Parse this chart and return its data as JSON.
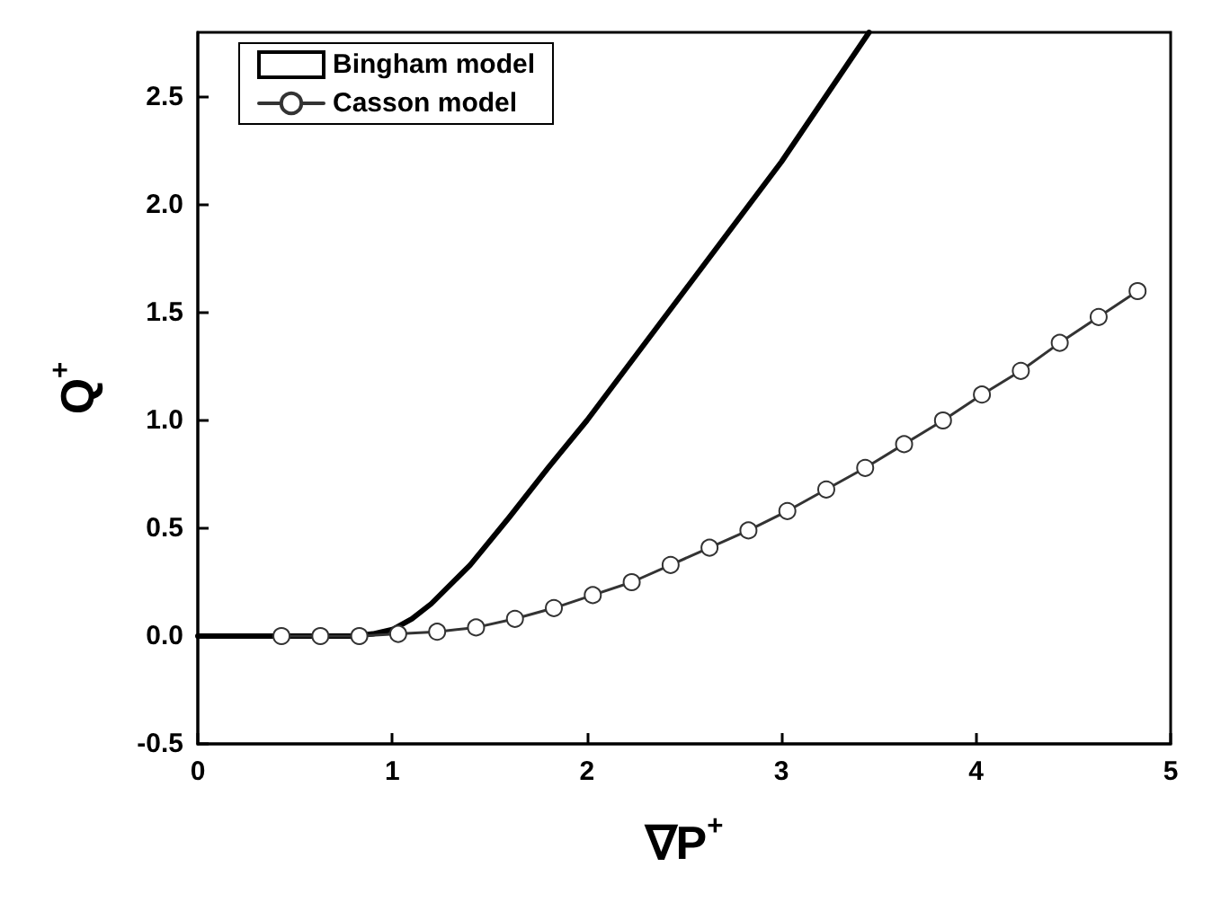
{
  "chart_data": {
    "type": "line",
    "xlabel": "∇P$^{+}$",
    "ylabel": "Q$^{+}$",
    "xlim": [
      0,
      5
    ],
    "ylim": [
      -0.5,
      2.8
    ],
    "xticks": [
      0,
      1,
      2,
      3,
      4,
      5
    ],
    "yticks": [
      {
        "value": -0.5,
        "label": "-0.5"
      },
      {
        "value": 0,
        "label": "0.0"
      },
      0.5,
      {
        "value": 1,
        "label": "1.0"
      },
      1.5,
      {
        "value": 2,
        "label": "2.0"
      },
      2.5
    ],
    "grid": false,
    "legend": "top left",
    "series": [
      {
        "name": "Bingham model",
        "color": "#000000",
        "marker": "none",
        "x": [
          0,
          0.8,
          0.9,
          1.0,
          1.1,
          1.2,
          1.4,
          1.6,
          1.8,
          2,
          2.5,
          3,
          3.45
        ],
        "values": [
          0,
          0,
          0.01,
          0.03,
          0.08,
          0.15,
          0.33,
          0.55,
          0.78,
          1.0,
          1.6,
          2.2,
          2.8
        ]
      },
      {
        "name": "Casson model",
        "color": "#333333",
        "marker": "circle",
        "x": [
          0.43,
          0.63,
          0.83,
          1.03,
          1.23,
          1.43,
          1.63,
          1.83,
          2.03,
          2.23,
          2.43,
          2.63,
          2.83,
          3.03,
          3.23,
          3.43,
          3.63,
          3.83,
          4.03,
          4.23,
          4.43,
          4.63,
          4.83
        ],
        "values": [
          0,
          0,
          0,
          0.01,
          0.02,
          0.04,
          0.08,
          0.13,
          0.19,
          0.25,
          0.33,
          0.41,
          0.49,
          0.58,
          0.68,
          0.78,
          0.89,
          1.0,
          1.12,
          1.23,
          1.36,
          1.48,
          1.6
        ]
      }
    ]
  }
}
